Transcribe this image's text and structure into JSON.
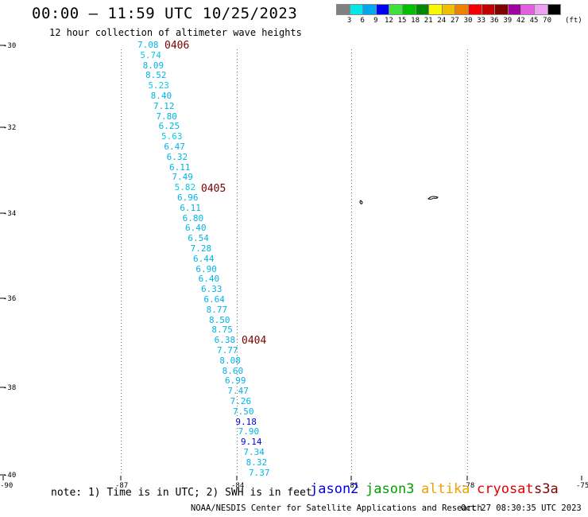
{
  "header": {
    "title": "00:00 – 11:59 UTC 10/25/2023",
    "subtitle": "12 hour collection of altimeter wave heights"
  },
  "color_scale": {
    "unit": "(ft)",
    "labels": [
      "3",
      "6",
      "9",
      "12",
      "15",
      "18",
      "21",
      "24",
      "27",
      "30",
      "33",
      "36",
      "39",
      "42",
      "45",
      "70"
    ],
    "colors": [
      "#808080",
      "#00e8e8",
      "#00a8f0",
      "#0000f0",
      "#40e040",
      "#00c000",
      "#008800",
      "#f8f800",
      "#f0c000",
      "#f08000",
      "#f00000",
      "#c00000",
      "#800000",
      "#a000a0",
      "#e060e0",
      "#f0a0f0",
      "#000000"
    ]
  },
  "axes": {
    "lat_labels": [
      "-30",
      "-32",
      "-34",
      "-36",
      "-38",
      "-40"
    ],
    "lon_labels": [
      "-90",
      "-87",
      "-84",
      "-81",
      "-78",
      "-75"
    ]
  },
  "passes": [
    {
      "label": "0406"
    },
    {
      "label": "0405"
    },
    {
      "label": "0404"
    }
  ],
  "measurements": [
    {
      "value": "7.08",
      "color": "#00b4e8"
    },
    {
      "value": "5.74",
      "color": "#00d0e8"
    },
    {
      "value": "8.09",
      "color": "#00b4e8"
    },
    {
      "value": "8.52",
      "color": "#00b4e8"
    },
    {
      "value": "5.23",
      "color": "#00d0e8"
    },
    {
      "value": "8.40",
      "color": "#00b4e8"
    },
    {
      "value": "7.12",
      "color": "#00b4e8"
    },
    {
      "value": "7.80",
      "color": "#00b4e8"
    },
    {
      "value": "6.25",
      "color": "#00b4e8"
    },
    {
      "value": "5.63",
      "color": "#00d0e8"
    },
    {
      "value": "6.47",
      "color": "#00b4e8"
    },
    {
      "value": "6.32",
      "color": "#00b4e8"
    },
    {
      "value": "6.11",
      "color": "#00b4e8"
    },
    {
      "value": "7.49",
      "color": "#00b4e8"
    },
    {
      "value": "5.82",
      "color": "#00d0e8"
    },
    {
      "value": "6.96",
      "color": "#00b4e8"
    },
    {
      "value": "6.11",
      "color": "#00b4e8"
    },
    {
      "value": "6.80",
      "color": "#00b4e8"
    },
    {
      "value": "6.40",
      "color": "#00b4e8"
    },
    {
      "value": "6.54",
      "color": "#00b4e8"
    },
    {
      "value": "7.28",
      "color": "#00b4e8"
    },
    {
      "value": "6.44",
      "color": "#00b4e8"
    },
    {
      "value": "6.90",
      "color": "#00b4e8"
    },
    {
      "value": "6.40",
      "color": "#00b4e8"
    },
    {
      "value": "6.33",
      "color": "#00b4e8"
    },
    {
      "value": "6.64",
      "color": "#00b4e8"
    },
    {
      "value": "8.77",
      "color": "#00b4e8"
    },
    {
      "value": "8.50",
      "color": "#00b4e8"
    },
    {
      "value": "8.75",
      "color": "#00b4e8"
    },
    {
      "value": "6.38",
      "color": "#00b4e8"
    },
    {
      "value": "7.77",
      "color": "#00b4e8"
    },
    {
      "value": "8.08",
      "color": "#00b4e8"
    },
    {
      "value": "8.60",
      "color": "#00b4e8"
    },
    {
      "value": "6.99",
      "color": "#00b4e8"
    },
    {
      "value": "7.47",
      "color": "#00b4e8"
    },
    {
      "value": "7.26",
      "color": "#00b4e8"
    },
    {
      "value": "7.50",
      "color": "#00b4e8"
    },
    {
      "value": "9.18",
      "color": "#0000e0"
    },
    {
      "value": "7.90",
      "color": "#00b4e8"
    },
    {
      "value": "9.14",
      "color": "#0000e0"
    },
    {
      "value": "7.34",
      "color": "#00b4e8"
    },
    {
      "value": "8.32",
      "color": "#00b4e8"
    },
    {
      "value": "7.37",
      "color": "#00b4e8"
    }
  ],
  "note": "note: 1) Time is in UTC; 2) SWH is in feet",
  "legend": [
    {
      "label": "jason2",
      "color": "#0000e0"
    },
    {
      "label": "jason3",
      "color": "#00a000"
    },
    {
      "label": "altika",
      "color": "#f0a000"
    },
    {
      "label": "cryosat",
      "color": "#e00000"
    },
    {
      "label": "s3a",
      "color": "#800000"
    }
  ],
  "footer": {
    "credit": "NOAA/NESDIS Center for Satellite Applications and Research",
    "timestamp": "Oct 27 08:30:35 UTC 2023"
  }
}
